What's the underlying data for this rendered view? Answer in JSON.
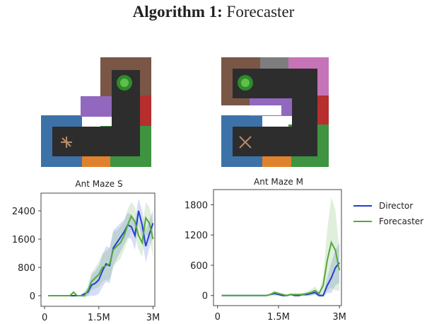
{
  "header": {
    "title_bold": "Algorithm 1:",
    "title_rest": "Forecaster"
  },
  "colors": {
    "wall_blue": "#3d72a8",
    "wall_orange": "#e0812d",
    "wall_green": "#3e9440",
    "wall_red": "#b62e2e",
    "wall_brown": "#7a5647",
    "wall_purple": "#9168be",
    "wall_pink": "#c674b8",
    "wall_gray": "#7d7d7d",
    "floor": "#2d2d2d",
    "director": "#2140d1",
    "forecaster": "#55a83b"
  },
  "legend": [
    {
      "label": "Director",
      "color": "#2140d1"
    },
    {
      "label": "Forecaster",
      "color": "#55a83b"
    }
  ],
  "chart_data": [
    {
      "type": "line",
      "title": "Ant Maze S",
      "xticks": [
        "0",
        "1.5M",
        "3M"
      ],
      "yticks": [
        "0",
        "800",
        "1600",
        "2400"
      ],
      "xlim": [
        -0.1,
        3.05
      ],
      "ylim": [
        -300,
        2900
      ],
      "x": [
        0.1,
        0.2,
        0.3,
        0.4,
        0.5,
        0.6,
        0.7,
        0.8,
        0.9,
        1.0,
        1.1,
        1.2,
        1.3,
        1.4,
        1.5,
        1.6,
        1.7,
        1.8,
        1.9,
        2.0,
        2.1,
        2.2,
        2.3,
        2.4,
        2.5,
        2.6,
        2.7,
        2.8,
        2.9,
        3.0
      ],
      "series": [
        {
          "name": "Director",
          "values": [
            0,
            0,
            0,
            0,
            0,
            0,
            0,
            0,
            0,
            0,
            50,
            100,
            300,
            350,
            450,
            700,
            900,
            850,
            1350,
            1500,
            1650,
            1800,
            2000,
            1950,
            1700,
            2400,
            2000,
            1400,
            1750,
            2050
          ],
          "band_width": [
            0,
            0,
            0,
            0,
            0,
            0,
            0,
            0,
            0,
            20,
            60,
            120,
            300,
            350,
            400,
            450,
            500,
            500,
            500,
            450,
            400,
            350,
            350,
            350,
            400,
            350,
            400,
            450,
            400,
            350
          ]
        },
        {
          "name": "Forecaster",
          "values": [
            0,
            0,
            0,
            0,
            0,
            0,
            0,
            100,
            0,
            0,
            0,
            150,
            400,
            500,
            600,
            800,
            850,
            900,
            1300,
            1400,
            1500,
            1700,
            2000,
            2250,
            2100,
            1700,
            1500,
            2200,
            2050,
            1600
          ],
          "band_width": [
            0,
            0,
            0,
            0,
            0,
            0,
            0,
            50,
            20,
            20,
            60,
            150,
            250,
            300,
            350,
            400,
            400,
            450,
            500,
            450,
            450,
            400,
            450,
            400,
            400,
            400,
            400,
            450,
            450,
            500
          ]
        }
      ]
    },
    {
      "type": "line",
      "title": "Ant Maze M",
      "xticks": [
        "0",
        "1.5M",
        "3M"
      ],
      "yticks": [
        "0",
        "600",
        "1200",
        "1800"
      ],
      "xlim": [
        -0.1,
        3.05
      ],
      "ylim": [
        -200,
        2100
      ],
      "x": [
        0.1,
        0.2,
        0.3,
        0.4,
        0.5,
        0.6,
        0.7,
        0.8,
        0.9,
        1.0,
        1.1,
        1.2,
        1.3,
        1.4,
        1.5,
        1.6,
        1.7,
        1.8,
        1.9,
        2.0,
        2.1,
        2.2,
        2.3,
        2.4,
        2.5,
        2.6,
        2.7,
        2.8,
        2.9,
        3.0
      ],
      "series": [
        {
          "name": "Director",
          "values": [
            0,
            0,
            0,
            0,
            0,
            0,
            0,
            0,
            0,
            0,
            0,
            0,
            20,
            40,
            20,
            0,
            0,
            20,
            0,
            0,
            20,
            20,
            40,
            60,
            0,
            0,
            200,
            350,
            550,
            650
          ],
          "band_width": [
            0,
            0,
            0,
            0,
            0,
            0,
            0,
            0,
            0,
            0,
            0,
            0,
            20,
            40,
            20,
            20,
            20,
            20,
            20,
            20,
            30,
            30,
            40,
            50,
            30,
            30,
            150,
            300,
            350,
            400
          ]
        },
        {
          "name": "Forecaster",
          "values": [
            0,
            0,
            0,
            0,
            0,
            0,
            0,
            0,
            0,
            0,
            0,
            0,
            20,
            60,
            40,
            20,
            0,
            20,
            20,
            20,
            20,
            40,
            60,
            100,
            40,
            200,
            700,
            1050,
            900,
            500
          ],
          "band_width": [
            0,
            0,
            0,
            0,
            0,
            0,
            0,
            0,
            0,
            0,
            0,
            0,
            20,
            40,
            30,
            20,
            20,
            20,
            20,
            20,
            30,
            40,
            60,
            80,
            50,
            200,
            600,
            900,
            800,
            400
          ]
        }
      ]
    }
  ]
}
